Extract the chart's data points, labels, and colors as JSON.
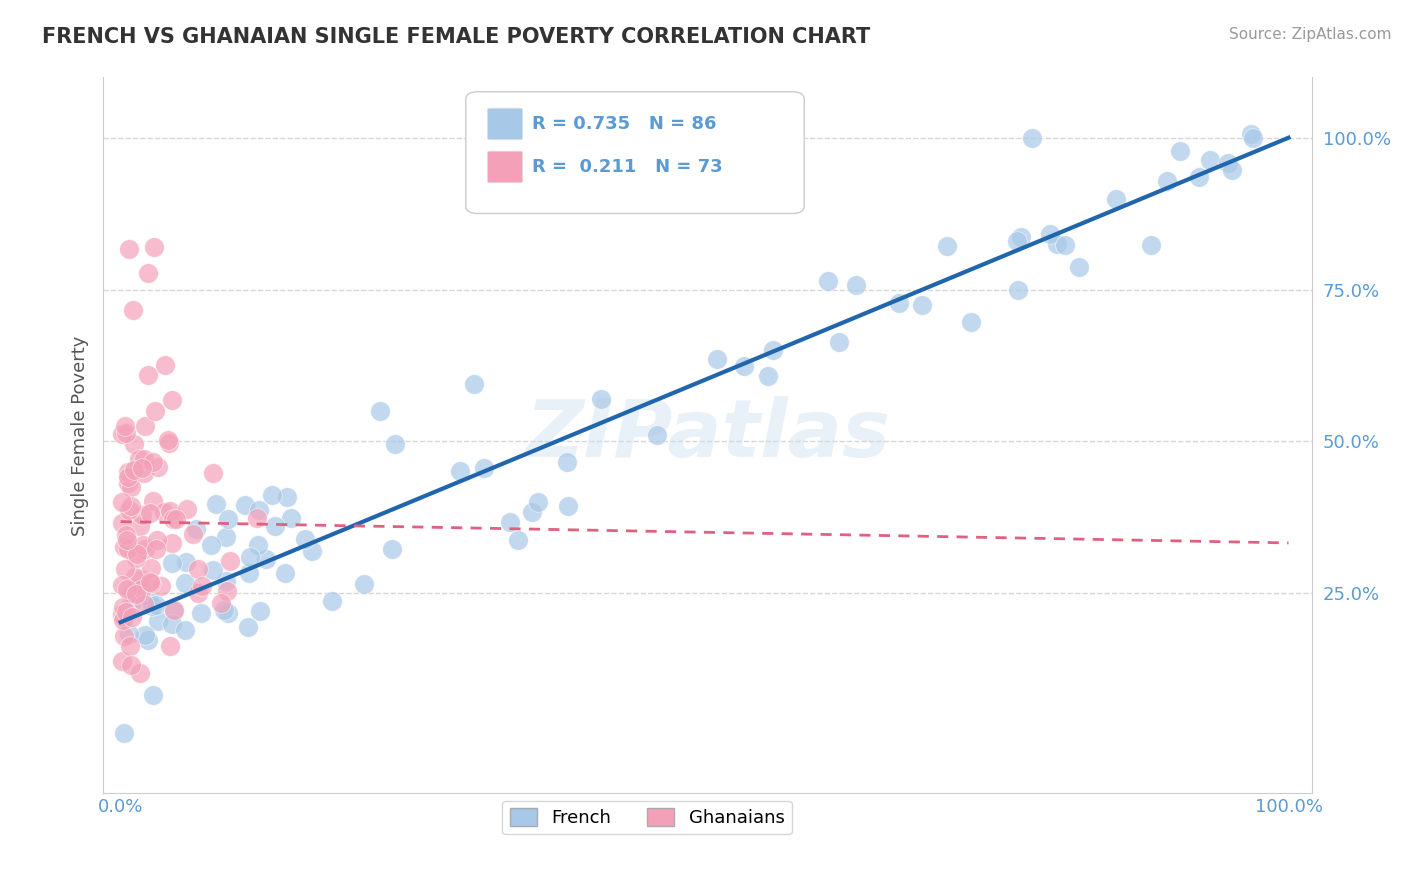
{
  "title": "FRENCH VS GHANAIAN SINGLE FEMALE POVERTY CORRELATION CHART",
  "source": "Source: ZipAtlas.com",
  "ylabel": "Single Female Poverty",
  "french_color": "#a8c8e8",
  "ghanaian_color": "#f4a0b8",
  "french_line_color": "#2166ac",
  "ghanaian_line_color": "#e06080",
  "R_french": 0.735,
  "N_french": 86,
  "R_ghanaian": 0.211,
  "N_ghanaian": 73,
  "legend_label_french": "French",
  "legend_label_ghanaian": "Ghanaians",
  "watermark": "ZIPatlas",
  "background_color": "#ffffff",
  "grid_color": "#cccccc",
  "title_color": "#333333",
  "axis_label_color": "#5b9bd5",
  "title_fontsize": 15,
  "source_fontsize": 11
}
